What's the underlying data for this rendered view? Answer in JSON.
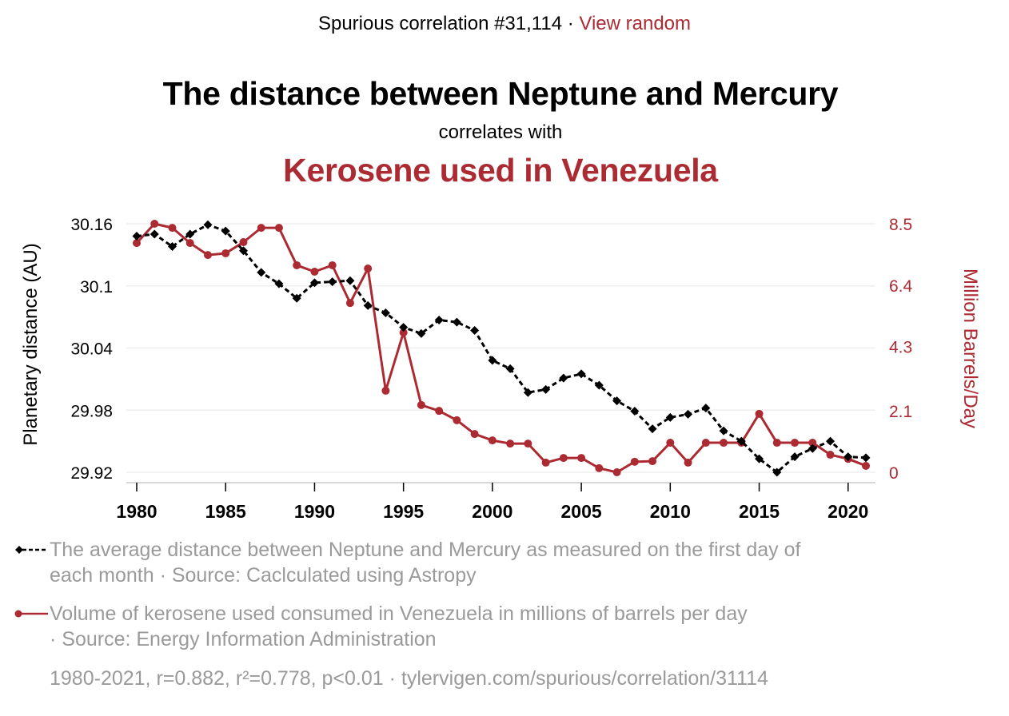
{
  "header": {
    "prefix": "Spurious correlation #31,114 · ",
    "link_label": "View random",
    "title": "The distance between Neptune and Mercury",
    "correlates_text": "correlates with",
    "subtitle": "Kerosene used in Venezuela"
  },
  "colors": {
    "accent": "#AC2B32",
    "series1": "#000000",
    "series2": "#AC2B32",
    "legend_text": "#9a9a9a",
    "grid": "#efefef"
  },
  "legend": {
    "series1_line1": "The average distance between Neptune and Mercury as measured on the first day of",
    "series1_line2": "each month · Source: Caclculated using Astropy",
    "series2_line1": "Volume of kerosene used consumed in Venezuela in millions of barrels per day",
    "series2_line2": "· Source: Energy Information Administration"
  },
  "footer": {
    "stats": "1980-2021, r=0.882, r²=0.778, p<0.01 · tylervigen.com/spurious/correlation/31114"
  },
  "chart_data": {
    "type": "line",
    "title": "The distance between Neptune and Mercury correlates with Kerosene used in Venezuela",
    "xlabel": "",
    "ylabel": "Planetary distance (AU)",
    "y2label": "Million Barrels/Day",
    "x": [
      1980,
      1981,
      1982,
      1983,
      1984,
      1985,
      1986,
      1987,
      1988,
      1989,
      1990,
      1991,
      1992,
      1993,
      1994,
      1995,
      1996,
      1997,
      1998,
      1999,
      2000,
      2001,
      2002,
      2003,
      2004,
      2005,
      2006,
      2007,
      2008,
      2009,
      2010,
      2011,
      2012,
      2013,
      2014,
      2015,
      2016,
      2017,
      2018,
      2019,
      2020,
      2021
    ],
    "xlim": [
      1980,
      2021
    ],
    "x_ticks": [
      "1980",
      "1985",
      "1990",
      "1995",
      "2000",
      "2005",
      "2010",
      "2015",
      "2020"
    ],
    "ylim": [
      29.92,
      30.16
    ],
    "y_ticks": [
      "30.16",
      "30.1",
      "30.04",
      "29.98",
      "29.92"
    ],
    "y2lim": [
      0,
      8.5
    ],
    "y2_ticks": [
      "8.5",
      "6.4",
      "4.3",
      "2.1",
      "0"
    ],
    "grid": true,
    "legend_position": "bottom",
    "series": [
      {
        "name": "The average distance between Neptune and Mercury as measured on the first day of each month",
        "axis": "left",
        "style": "dashed-diamond",
        "values": [
          30.148,
          30.15,
          30.138,
          30.15,
          30.159,
          30.153,
          30.134,
          30.113,
          30.102,
          30.088,
          30.103,
          30.104,
          30.105,
          30.081,
          30.074,
          30.06,
          30.054,
          30.067,
          30.065,
          30.057,
          30.028,
          30.02,
          29.997,
          30.0,
          30.011,
          30.015,
          30.004,
          29.989,
          29.979,
          29.962,
          29.973,
          29.976,
          29.982,
          29.96,
          29.95,
          29.933,
          29.92,
          29.935,
          29.943,
          29.95,
          29.935,
          29.934
        ]
      },
      {
        "name": "Volume of kerosene used consumed in Venezuela in millions of barrels per day",
        "axis": "right",
        "style": "solid-circle",
        "values": [
          7.84,
          8.5,
          8.36,
          7.84,
          7.43,
          7.49,
          7.87,
          8.36,
          8.36,
          7.08,
          6.86,
          7.08,
          5.79,
          6.97,
          2.79,
          4.78,
          2.3,
          2.1,
          1.78,
          1.31,
          1.09,
          0.98,
          0.98,
          0.33,
          0.49,
          0.49,
          0.14,
          0.0,
          0.36,
          0.38,
          1.01,
          0.33,
          1.01,
          1.01,
          1.01,
          2.0,
          1.01,
          1.01,
          1.01,
          0.6,
          0.46,
          0.22
        ]
      }
    ]
  }
}
